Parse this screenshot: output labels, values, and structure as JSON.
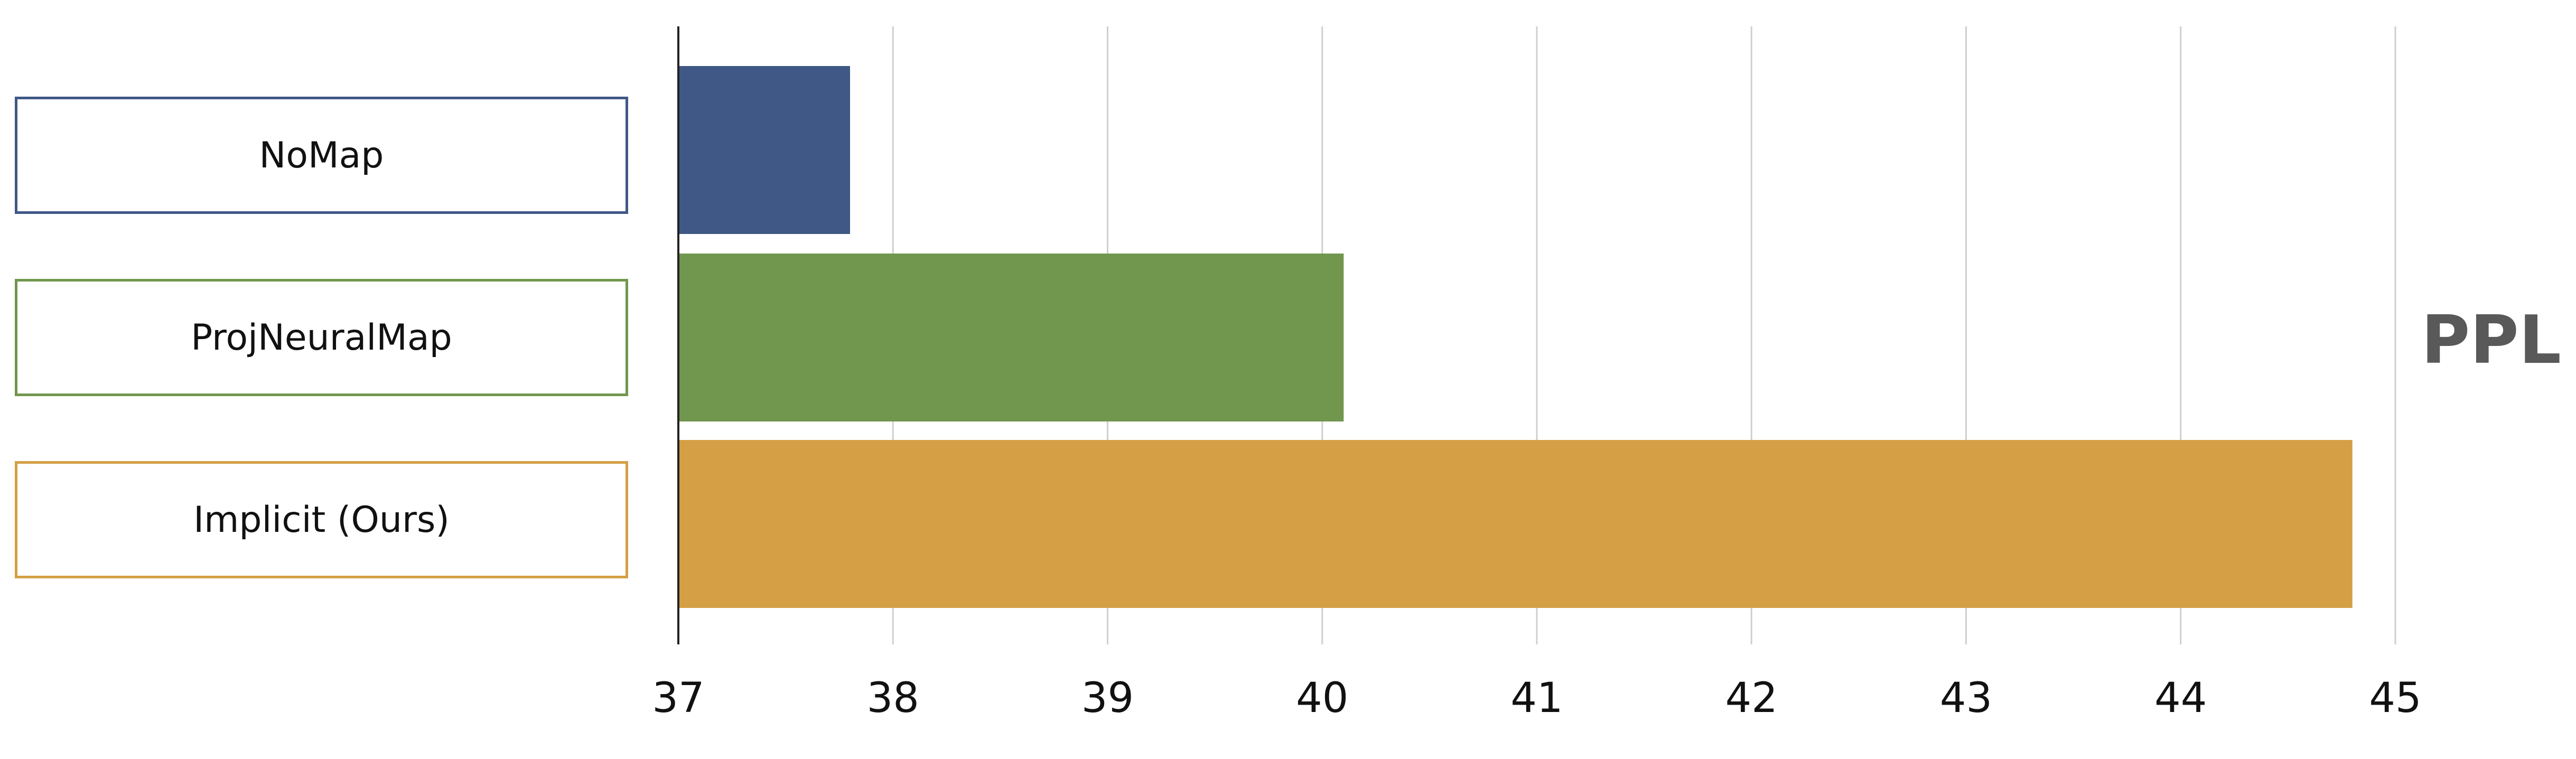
{
  "chart_data": {
    "type": "bar",
    "orientation": "horizontal",
    "categories": [
      "NoMap",
      "ProjNeuralMap",
      "Implicit (Ours)"
    ],
    "values": [
      37.8,
      40.1,
      44.8
    ],
    "colors": [
      "#3F5886",
      "#71964E",
      "#D49F45"
    ],
    "metric": "PPL",
    "xlim": [
      37,
      45
    ],
    "xticks": [
      "37",
      "38",
      "39",
      "40",
      "41",
      "42",
      "43",
      "44",
      "45"
    ],
    "grid": true,
    "legend_placement": "left"
  }
}
